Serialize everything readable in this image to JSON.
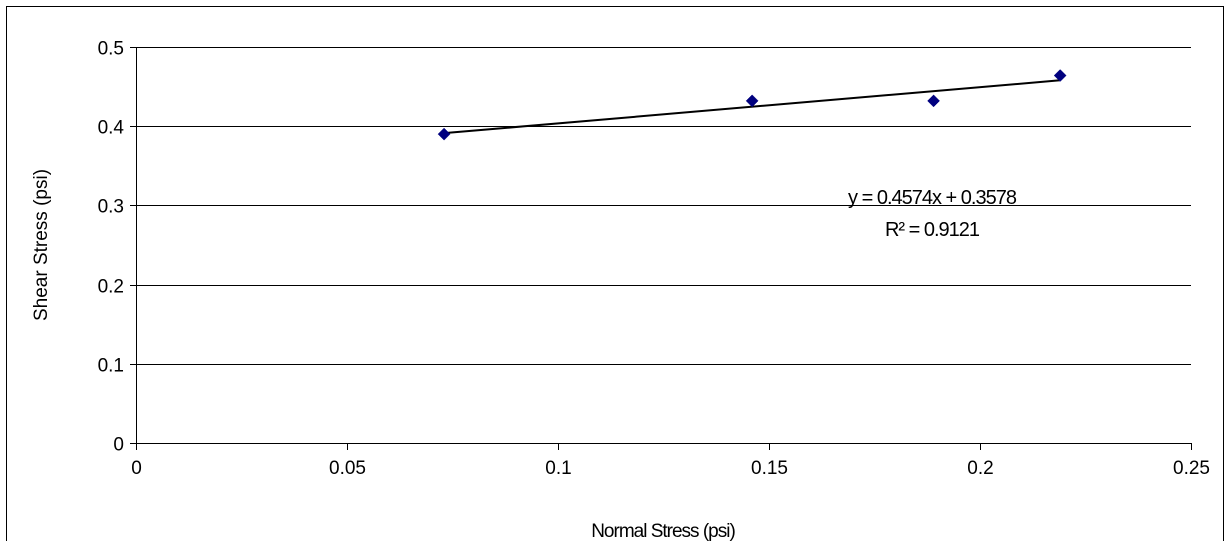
{
  "chart_data": {
    "type": "scatter",
    "title": "",
    "xlabel": "Normal Stress (psi)",
    "ylabel": "Shear Stress (psi)",
    "xlim": [
      0,
      0.25
    ],
    "ylim": [
      0,
      0.5
    ],
    "x_ticks": [
      "0",
      "0.05",
      "0.1",
      "0.15",
      "0.2",
      "0.25"
    ],
    "y_ticks": [
      "0",
      "0.1",
      "0.2",
      "0.3",
      "0.4",
      "0.5"
    ],
    "x_tick_values": [
      0,
      0.05,
      0.1,
      0.15,
      0.2,
      0.25
    ],
    "y_tick_values": [
      0,
      0.1,
      0.2,
      0.3,
      0.4,
      0.5
    ],
    "grid": "horizontal",
    "legend": "none",
    "series": [
      {
        "x": [
          0.073,
          0.146,
          0.189,
          0.219
        ],
        "y": [
          0.39,
          0.432,
          0.432,
          0.464
        ],
        "marker": "diamond",
        "color": "#00007f"
      }
    ],
    "trendline": {
      "type": "linear",
      "slope": 0.4574,
      "intercept": 0.3578,
      "x_range": [
        0.073,
        0.219
      ],
      "equation": "y = 0.4574x + 0.3578",
      "r_squared": "R² = 0.9121",
      "color": "#000000"
    }
  }
}
